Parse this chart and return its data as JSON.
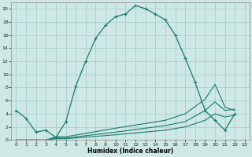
{
  "xlabel": "Humidex (Indice chaleur)",
  "bg_color": "#cde8e5",
  "grid_color": "#aacfcc",
  "line_color": "#1a7a6e",
  "xlim": [
    -0.5,
    23.5
  ],
  "ylim": [
    0,
    21
  ],
  "xticks": [
    0,
    1,
    2,
    3,
    4,
    5,
    6,
    7,
    8,
    9,
    10,
    11,
    12,
    13,
    14,
    15,
    16,
    17,
    18,
    19,
    20,
    21,
    22,
    23
  ],
  "yticks": [
    0,
    2,
    4,
    6,
    8,
    10,
    12,
    14,
    16,
    18,
    20
  ],
  "line1_x": [
    0,
    1,
    2,
    3,
    4,
    5,
    6,
    7,
    8,
    9,
    10,
    11,
    12,
    13,
    14,
    15,
    16,
    17,
    18,
    19,
    20,
    21,
    22
  ],
  "line1_y": [
    4.5,
    3.3,
    1.2,
    1.5,
    0.4,
    2.8,
    8.2,
    12.0,
    15.5,
    17.5,
    18.8,
    19.2,
    20.5,
    20.0,
    19.2,
    18.3,
    16.0,
    12.5,
    8.8,
    4.5,
    3.0,
    1.5,
    4.0
  ],
  "line2_x": [
    0,
    1,
    2,
    3,
    4,
    5,
    10,
    15,
    17,
    19,
    20,
    21,
    22
  ],
  "line2_y": [
    0,
    0,
    0,
    0,
    0.5,
    0.5,
    1.8,
    3.0,
    4.0,
    6.2,
    8.5,
    5.0,
    4.5
  ],
  "line3_x": [
    0,
    1,
    2,
    3,
    4,
    5,
    10,
    15,
    17,
    19,
    20,
    21,
    22
  ],
  "line3_y": [
    0,
    0,
    0,
    0,
    0.3,
    0.3,
    1.2,
    2.2,
    2.8,
    4.5,
    5.8,
    4.5,
    4.7
  ],
  "line4_x": [
    0,
    1,
    2,
    3,
    4,
    5,
    10,
    15,
    17,
    19,
    20,
    21,
    22
  ],
  "line4_y": [
    0,
    0,
    0,
    0,
    0.2,
    0.2,
    0.8,
    1.5,
    2.0,
    3.0,
    4.0,
    3.5,
    3.8
  ]
}
